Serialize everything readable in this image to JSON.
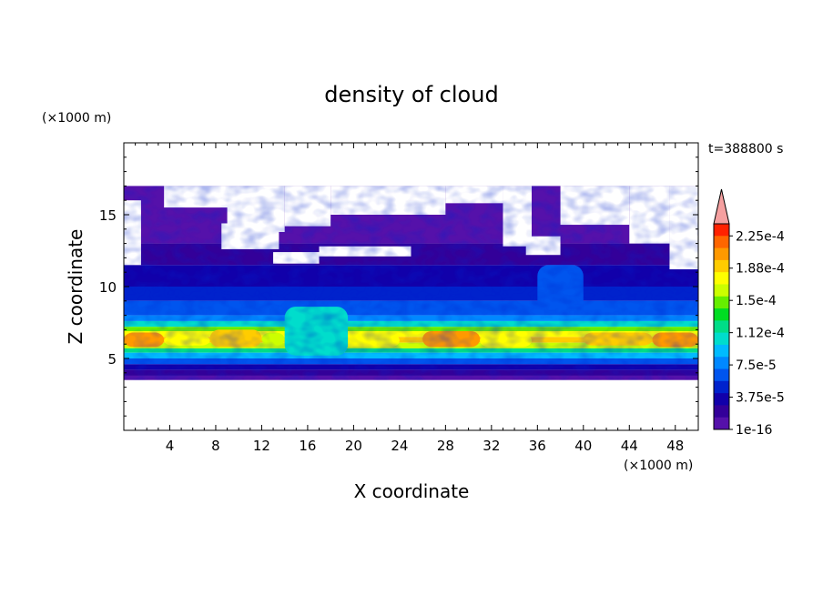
{
  "chart_data": {
    "type": "heatmap",
    "title": "density of cloud",
    "xlabel": "X coordinate",
    "ylabel": "Z coordinate",
    "x_unit": "(×1000 m)",
    "y_unit": "(×1000 m)",
    "time_label": "t=388800 s",
    "xlim": [
      0,
      50
    ],
    "ylim": [
      0,
      20
    ],
    "x_ticks": [
      4,
      8,
      12,
      16,
      20,
      24,
      28,
      32,
      36,
      40,
      44,
      48
    ],
    "y_ticks": [
      5,
      10,
      15
    ],
    "colorbar": {
      "labels": [
        "2.25e-4",
        "1.88e-4",
        "1.5e-4",
        "1.12e-4",
        "7.5e-5",
        "3.75e-5",
        "1e-16"
      ],
      "label_values": [
        0.000225,
        0.000188,
        0.00015,
        0.000112,
        7.5e-05,
        3.75e-05,
        1e-16
      ],
      "levels_top_to_bottom": [
        "#ff2200",
        "#ff6600",
        "#ff9900",
        "#ffcc00",
        "#ffff00",
        "#ccff00",
        "#66ee00",
        "#00dd22",
        "#00dd88",
        "#00ddcc",
        "#00bbff",
        "#0088ff",
        "#0055ee",
        "#0022cc",
        "#1100aa",
        "#330099",
        "#5511aa"
      ],
      "over_color": "#f5a0a0"
    },
    "bands": [
      {
        "z": [
          3.5,
          4.0
        ],
        "value": "3.75e-5"
      },
      {
        "z": [
          4.0,
          5.0
        ],
        "value": "7.5e-5"
      },
      {
        "z": [
          5.0,
          6.0
        ],
        "value": "1.12e-4"
      },
      {
        "z": [
          6.0,
          7.0
        ],
        "value": "1.88e-4"
      },
      {
        "z": [
          7.0,
          9.0
        ],
        "value": "3.75e-5"
      },
      {
        "z": [
          9.0,
          17.0
        ],
        "value": "1e-16"
      }
    ]
  }
}
